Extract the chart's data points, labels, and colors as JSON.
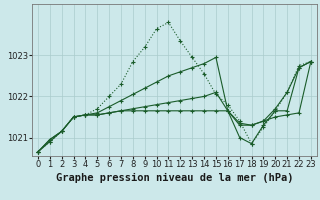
{
  "background_color": "#cce8ea",
  "grid_color": "#aacccc",
  "line_color": "#1a5c2a",
  "title": "Graphe pression niveau de la mer (hPa)",
  "xlim": [
    -0.5,
    23.5
  ],
  "ylim": [
    1020.55,
    1024.25
  ],
  "yticks": [
    1021,
    1022,
    1023
  ],
  "xticks": [
    0,
    1,
    2,
    3,
    4,
    5,
    6,
    7,
    8,
    9,
    10,
    11,
    12,
    13,
    14,
    15,
    16,
    17,
    18,
    19,
    20,
    21,
    22,
    23
  ],
  "series": [
    {
      "x": [
        0,
        1,
        2,
        3,
        4,
        5,
        6,
        7,
        8,
        9,
        10,
        11,
        12,
        13,
        14,
        15,
        16,
        17,
        18,
        19,
        20,
        21,
        22,
        23
      ],
      "y": [
        1020.65,
        1020.9,
        1021.15,
        1021.5,
        1021.55,
        1021.7,
        1022.0,
        1022.3,
        1022.85,
        1023.2,
        1023.65,
        1023.8,
        1023.35,
        1022.95,
        1022.55,
        1022.05,
        1021.8,
        1021.4,
        1020.85,
        1021.25,
        1021.65,
        1022.1,
        1022.75,
        1022.85
      ],
      "style": "dotted",
      "marker": "+"
    },
    {
      "x": [
        0,
        1,
        2,
        3,
        4,
        5,
        6,
        7,
        8,
        9,
        10,
        11,
        12,
        13,
        14,
        15,
        16,
        17,
        18,
        19,
        20,
        21,
        22,
        23
      ],
      "y": [
        1020.65,
        1020.9,
        1021.15,
        1021.5,
        1021.55,
        1021.6,
        1021.75,
        1021.9,
        1022.05,
        1022.2,
        1022.35,
        1022.5,
        1022.6,
        1022.7,
        1022.8,
        1022.95,
        1021.65,
        1021.35,
        1021.3,
        1021.4,
        1021.7,
        1022.1,
        1022.7,
        1022.85
      ],
      "style": "solid",
      "marker": "+"
    },
    {
      "x": [
        0,
        1,
        2,
        3,
        4,
        5,
        6,
        7,
        8,
        9,
        10,
        11,
        12,
        13,
        14,
        15,
        16,
        17,
        18,
        19,
        20,
        21,
        22,
        23
      ],
      "y": [
        1020.65,
        1020.95,
        1021.15,
        1021.5,
        1021.55,
        1021.55,
        1021.6,
        1021.65,
        1021.7,
        1021.75,
        1021.8,
        1021.85,
        1021.9,
        1021.95,
        1022.0,
        1022.1,
        1021.65,
        1021.0,
        1020.85,
        1021.3,
        1021.65,
        1021.65,
        1022.7,
        1022.85
      ],
      "style": "solid",
      "marker": "+"
    },
    {
      "x": [
        0,
        1,
        2,
        3,
        4,
        5,
        6,
        7,
        8,
        9,
        10,
        11,
        12,
        13,
        14,
        15,
        16,
        17,
        18,
        19,
        20,
        21,
        22,
        23
      ],
      "y": [
        1020.65,
        1020.95,
        1021.15,
        1021.5,
        1021.55,
        1021.55,
        1021.6,
        1021.65,
        1021.65,
        1021.65,
        1021.65,
        1021.65,
        1021.65,
        1021.65,
        1021.65,
        1021.65,
        1021.65,
        1021.3,
        1021.3,
        1021.4,
        1021.5,
        1021.55,
        1021.6,
        1022.85
      ],
      "style": "solid",
      "marker": "+"
    }
  ],
  "title_fontsize": 7.5,
  "tick_fontsize": 6.0
}
